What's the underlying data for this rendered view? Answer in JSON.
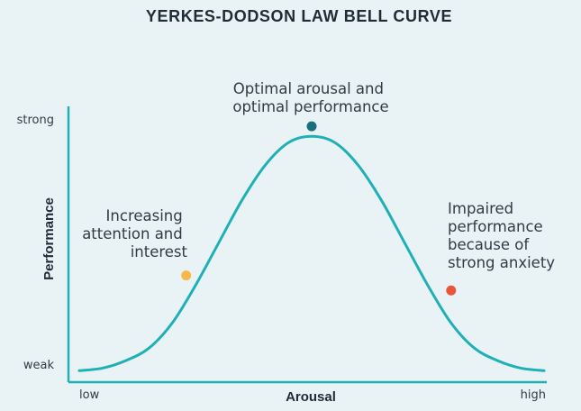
{
  "chart_data": {
    "type": "line",
    "title": "YERKES-DODSON LAW BELL CURVE",
    "xlabel": "Arousal",
    "ylabel": "Performance",
    "x_ticks": [
      "low",
      "high"
    ],
    "y_ticks": [
      "weak",
      "strong"
    ],
    "xlim": [
      0,
      1
    ],
    "ylim": [
      0,
      1
    ],
    "grid": false,
    "series": [
      {
        "color": "#1fb0b6",
        "x": [
          0.0,
          0.05,
          0.1,
          0.15,
          0.2,
          0.25,
          0.3,
          0.35,
          0.4,
          0.45,
          0.5,
          0.55,
          0.6,
          0.65,
          0.7,
          0.75,
          0.8,
          0.85,
          0.9,
          0.95,
          1.0
        ],
        "y": [
          0.01,
          0.02,
          0.05,
          0.1,
          0.2,
          0.35,
          0.52,
          0.69,
          0.83,
          0.92,
          0.945,
          0.92,
          0.83,
          0.69,
          0.52,
          0.35,
          0.2,
          0.1,
          0.05,
          0.02,
          0.01
        ]
      }
    ],
    "points": [
      {
        "label": "Optimal arousal and optimal performance",
        "lines": [
          "Optimal arousal and",
          "optimal performance"
        ],
        "x": 0.5,
        "y": 0.985,
        "color": "#17707a"
      },
      {
        "label": "Increasing attention and interest",
        "lines": [
          "Increasing",
          "attention and",
          "interest"
        ],
        "x": 0.23,
        "y": 0.39,
        "color": "#f5b84a"
      },
      {
        "label": "Impaired performance because of strong anxiety",
        "lines": [
          "Impaired",
          "performance",
          "because of",
          "strong anxiety"
        ],
        "x": 0.8,
        "y": 0.33,
        "color": "#e8553a"
      }
    ],
    "axis_color": "#1fb0b6"
  }
}
